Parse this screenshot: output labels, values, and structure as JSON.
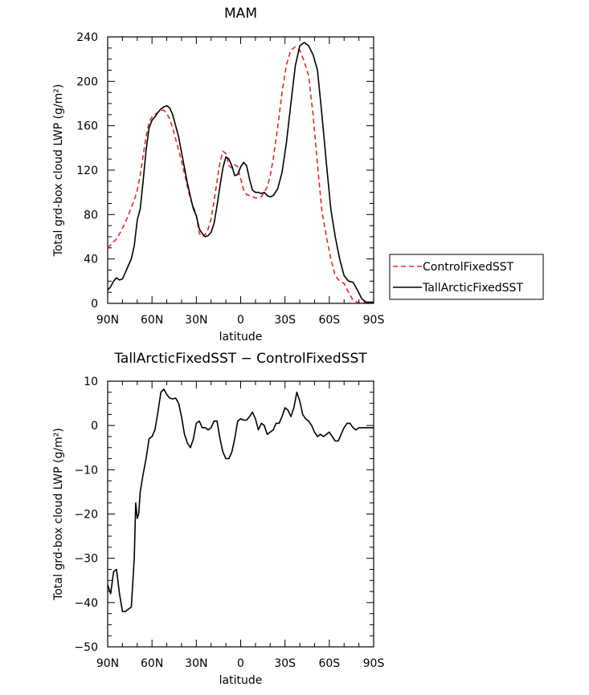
{
  "chart_data": [
    {
      "type": "line",
      "title": "MAM",
      "xlabel": "latitude",
      "ylabel": "Total grd-box cloud LWP (g/m²)",
      "ylim": [
        0,
        240
      ],
      "xlim": [
        90,
        -90
      ],
      "yticks": [
        0,
        40,
        80,
        120,
        160,
        200,
        240
      ],
      "xticks": [
        90,
        60,
        30,
        0,
        -30,
        -60,
        -90
      ],
      "xticklabels": [
        "90N",
        "60N",
        "30N",
        "0",
        "30S",
        "60S",
        "90S"
      ],
      "grid": false,
      "legend_position": "right-middle",
      "series": [
        {
          "name": "ControlFixedSST",
          "color": "#e8232a",
          "dash": "dashed",
          "x": [
            90,
            87,
            84,
            81,
            78,
            75,
            72,
            70,
            68,
            66,
            64,
            62,
            60,
            58,
            56,
            54,
            52,
            50,
            48,
            46,
            44,
            42,
            40,
            38,
            36,
            34,
            32,
            30,
            28,
            26,
            24,
            22,
            20,
            18,
            16,
            14,
            12,
            10,
            8,
            6,
            4,
            2,
            0,
            -2,
            -4,
            -6,
            -8,
            -10,
            -12,
            -14,
            -16,
            -18,
            -20,
            -22,
            -25,
            -28,
            -31,
            -34,
            -37,
            -40,
            -43,
            -46,
            -49,
            -52,
            -55,
            -58,
            -61,
            -64,
            -67,
            -70,
            -73,
            -76,
            -79,
            -82,
            -85,
            -88,
            -90
          ],
          "y": [
            50,
            54,
            58,
            65,
            73,
            83,
            93,
            102,
            115,
            133,
            150,
            163,
            168,
            170,
            172,
            174,
            174,
            171,
            166,
            158,
            148,
            138,
            128,
            117,
            105,
            94,
            87,
            80,
            63,
            60,
            62,
            67,
            76,
            92,
            110,
            127,
            137,
            135,
            124,
            122,
            125,
            123,
            112,
            102,
            98,
            97,
            96,
            95,
            95,
            96,
            100,
            105,
            115,
            130,
            158,
            190,
            215,
            228,
            231,
            228,
            218,
            205,
            170,
            125,
            83,
            60,
            40,
            25,
            20,
            18,
            10,
            3,
            1,
            1,
            1,
            1,
            1
          ]
        },
        {
          "name": "TallArcticFixedSST",
          "color": "#000000",
          "dash": "solid",
          "x": [
            90,
            88,
            86,
            84,
            82,
            80,
            78,
            76,
            74,
            72,
            70,
            68,
            66,
            64,
            62,
            60,
            58,
            56,
            54,
            52,
            50,
            48,
            46,
            44,
            42,
            40,
            38,
            36,
            34,
            32,
            30,
            28,
            26,
            24,
            22,
            20,
            18,
            16,
            14,
            12,
            10,
            8,
            6,
            4,
            2,
            0,
            -2,
            -4,
            -6,
            -8,
            -10,
            -12,
            -14,
            -16,
            -18,
            -20,
            -22,
            -25,
            -28,
            -31,
            -34,
            -37,
            -40,
            -43,
            -46,
            -49,
            -52,
            -55,
            -58,
            -61,
            -64,
            -67,
            -70,
            -73,
            -76,
            -79,
            -82,
            -85,
            -88,
            -90
          ],
          "y": [
            12,
            15,
            20,
            23,
            21,
            22,
            28,
            34,
            40,
            52,
            75,
            85,
            110,
            138,
            158,
            165,
            168,
            172,
            175,
            177,
            178,
            176,
            170,
            160,
            150,
            136,
            122,
            108,
            96,
            85,
            79,
            67,
            63,
            60,
            61,
            64,
            72,
            88,
            106,
            122,
            132,
            130,
            124,
            115,
            116,
            123,
            127,
            124,
            112,
            102,
            100,
            100,
            99,
            100,
            97,
            96,
            97,
            103,
            118,
            145,
            180,
            214,
            232,
            235,
            232,
            224,
            210,
            170,
            126,
            85,
            60,
            40,
            25,
            20,
            19,
            12,
            4,
            1,
            1,
            1
          ]
        }
      ]
    },
    {
      "type": "line",
      "title": "TallArcticFixedSST − ControlFixedSST",
      "xlabel": "latitude",
      "ylabel": "Total grd-box cloud LWP (g/m²)",
      "ylim": [
        -50,
        10
      ],
      "xlim": [
        90,
        -90
      ],
      "yticks": [
        -50,
        -40,
        -30,
        -20,
        -10,
        0,
        10
      ],
      "xticks": [
        90,
        60,
        30,
        0,
        -30,
        -60,
        -90
      ],
      "xticklabels": [
        "90N",
        "60N",
        "30N",
        "0",
        "30S",
        "60S",
        "90S"
      ],
      "grid": false,
      "series": [
        {
          "name": "",
          "color": "#000000",
          "dash": "solid",
          "x": [
            90,
            88,
            86,
            84,
            82,
            80,
            78,
            76,
            74,
            72,
            71,
            70,
            69,
            68,
            66,
            64,
            62,
            60,
            58,
            56,
            54,
            52,
            50,
            48,
            46,
            44,
            42,
            40,
            38,
            36,
            34,
            32,
            30,
            28,
            26,
            24,
            22,
            20,
            18,
            16,
            14,
            12,
            10,
            8,
            6,
            4,
            2,
            0,
            -2,
            -4,
            -6,
            -8,
            -10,
            -12,
            -14,
            -16,
            -18,
            -20,
            -22,
            -24,
            -26,
            -28,
            -30,
            -32,
            -34,
            -36,
            -38,
            -40,
            -42,
            -44,
            -46,
            -48,
            -50,
            -52,
            -54,
            -56,
            -58,
            -60,
            -62,
            -64,
            -66,
            -68,
            -70,
            -72,
            -74,
            -76,
            -78,
            -80,
            -82,
            -84,
            -86,
            -88,
            -90
          ],
          "y": [
            -36,
            -38,
            -33,
            -32.5,
            -38,
            -42,
            -42,
            -41.5,
            -41,
            -30,
            -17.5,
            -21,
            -20,
            -15,
            -11,
            -7.5,
            -3,
            -2.5,
            -1,
            3,
            7.5,
            8.2,
            7,
            6.2,
            6,
            6.2,
            5,
            2,
            -2,
            -4,
            -5,
            -3,
            0.5,
            1,
            -0.5,
            -0.5,
            -1,
            -0.5,
            1,
            1,
            -3,
            -6,
            -7.5,
            -7.5,
            -6,
            -3,
            1,
            1.5,
            1.2,
            1.2,
            2,
            3,
            1.5,
            -1,
            0.5,
            0,
            -2,
            -1.5,
            -1,
            0.5,
            0.5,
            2,
            4,
            3.5,
            2,
            4,
            7.5,
            5.5,
            2.5,
            1.5,
            1,
            0,
            -1.5,
            -2.5,
            -2,
            -2.5,
            -2,
            -1.5,
            -2.5,
            -3.5,
            -3.5,
            -2,
            -0.5,
            0.5,
            0.5,
            -0.5,
            -1,
            -0.5,
            -0.5,
            -0.5,
            -0.5,
            -0.5,
            -0.5
          ]
        }
      ]
    }
  ]
}
